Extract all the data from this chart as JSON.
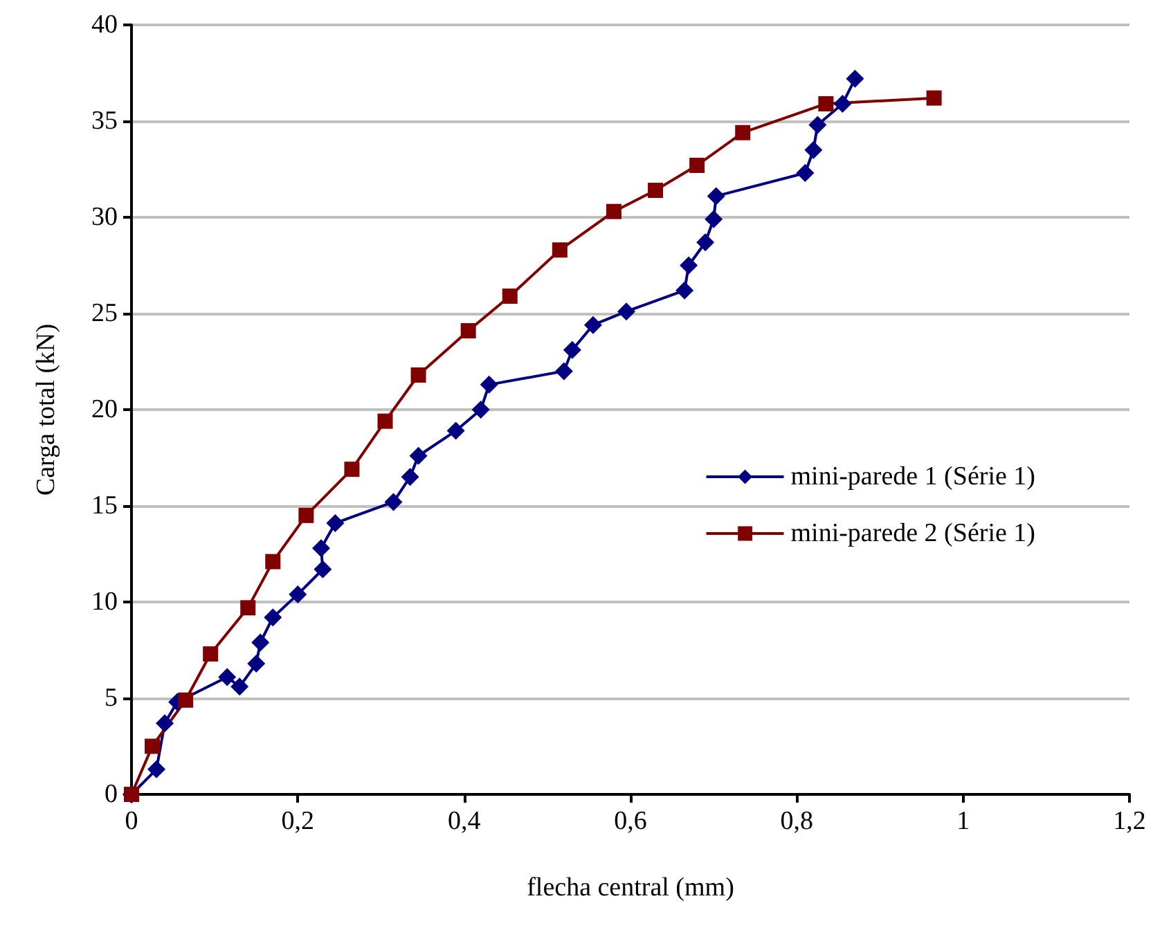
{
  "chart_data": {
    "type": "line",
    "xlabel": "flecha central (mm)",
    "ylabel": "Carga total (kN)",
    "xlim": [
      0,
      1.2
    ],
    "xticks": [
      0,
      {
        "value": 0.2,
        "label": "0,2"
      },
      {
        "value": 0.4,
        "label": "0,4"
      },
      {
        "value": 0.6,
        "label": "0,6"
      },
      {
        "value": 0.8,
        "label": "0,8"
      },
      1,
      {
        "value": 1.2,
        "label": "1,2"
      }
    ],
    "ylim": [
      0,
      40
    ],
    "yticks": [
      0,
      5,
      10,
      15,
      20,
      25,
      30,
      35,
      40
    ],
    "grid": "y",
    "legend": "right",
    "series": [
      {
        "name": "mini-parede 1 (Série 1)",
        "color": "#000080",
        "marker": "diamond",
        "x": [
          0,
          0.03,
          0.04,
          0.055,
          0.115,
          0.13,
          0.15,
          0.155,
          0.17,
          0.2,
          0.23,
          0.228,
          0.245,
          0.315,
          0.335,
          0.345,
          0.39,
          0.42,
          0.43,
          0.52,
          0.53,
          0.555,
          0.595,
          0.665,
          0.67,
          0.69,
          0.7,
          0.703,
          0.81,
          0.82,
          0.825,
          0.855,
          0.87
        ],
        "values": [
          0,
          1.3,
          3.7,
          4.8,
          6.1,
          5.6,
          6.8,
          7.9,
          9.2,
          10.4,
          11.7,
          12.8,
          14.1,
          15.2,
          16.5,
          17.6,
          18.9,
          20.0,
          21.3,
          22.0,
          23.1,
          24.4,
          25.1,
          26.2,
          27.5,
          28.7,
          29.9,
          31.1,
          32.3,
          33.5,
          34.8,
          35.9,
          37.2
        ]
      },
      {
        "name": "mini-parede 2 (Série 1)",
        "color": "#800000",
        "marker": "square",
        "x": [
          0,
          0.025,
          0.065,
          0.095,
          0.14,
          0.17,
          0.21,
          0.265,
          0.305,
          0.345,
          0.405,
          0.455,
          0.515,
          0.58,
          0.63,
          0.68,
          0.735,
          0.835,
          0.965
        ],
        "values": [
          0,
          2.5,
          4.9,
          7.3,
          9.7,
          12.1,
          14.5,
          16.9,
          19.4,
          21.8,
          24.1,
          25.9,
          28.3,
          30.3,
          31.4,
          32.7,
          34.4,
          35.9,
          36.2
        ]
      }
    ]
  }
}
